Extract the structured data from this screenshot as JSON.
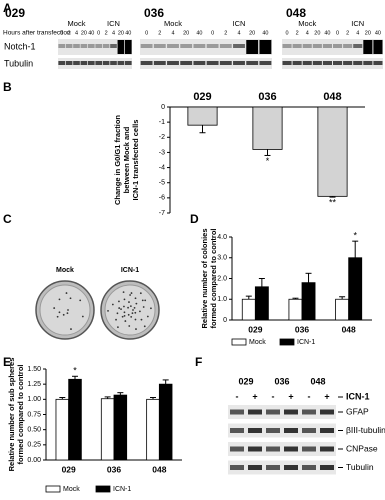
{
  "panel_labels": [
    "A",
    "B",
    "C",
    "D",
    "E",
    "F"
  ],
  "blot_a": {
    "title": "Hours after transfection",
    "lines": [
      "029",
      "036",
      "048"
    ],
    "conditions": [
      "Mock",
      "ICN"
    ],
    "hours": [
      "0",
      "2",
      "4",
      "20",
      "40"
    ],
    "rows": [
      "Notch-1",
      "Tubulin"
    ]
  },
  "panel_c": {
    "labels": [
      "Mock",
      "ICN-1"
    ]
  },
  "blot_f": {
    "lines": [
      "029",
      "036",
      "048"
    ],
    "signs": [
      "-",
      "+"
    ],
    "treatment": "ICN-1",
    "rows": [
      "GFAP",
      "βIII-tubulin",
      "CNPase",
      "Tubulin"
    ]
  },
  "chart_data": [
    {
      "type": "bar",
      "ylabel": [
        "Change in G0/G1 fraction",
        "between Mock and",
        "ICN-1 transfected cells"
      ],
      "categories": [
        "029",
        "036",
        "048"
      ],
      "values": [
        -1.2,
        -2.8,
        -5.9
      ],
      "errors": [
        0.5,
        0.4,
        0.05
      ],
      "color": "#d3d3d3",
      "ylim": [
        -7,
        0
      ],
      "yticks": [
        0,
        -1,
        -2,
        -3,
        -4,
        -5,
        -6,
        -7
      ],
      "annotations": [
        "*",
        "**"
      ]
    },
    {
      "type": "bar",
      "ylabel": [
        "Relative number of colonies",
        "formed compared to control"
      ],
      "categories": [
        "029",
        "036",
        "048"
      ],
      "series": [
        {
          "name": "Mock",
          "color": "#ffffff",
          "values": [
            1.0,
            1.0,
            1.0
          ],
          "errors": [
            0.15,
            0.05,
            0.12
          ]
        },
        {
          "name": "ICN-1",
          "color": "#000000",
          "values": [
            1.6,
            1.8,
            3.0
          ],
          "errors": [
            0.4,
            0.45,
            0.8
          ]
        }
      ],
      "ylim": [
        0,
        4
      ],
      "yticks": [
        0,
        {
          "value": 1,
          "label": "1.0"
        },
        {
          "value": 2,
          "label": "2.0"
        },
        {
          "value": 3,
          "label": "3.0"
        },
        {
          "value": 4,
          "label": "4.0"
        }
      ],
      "annotations": [
        "*"
      ]
    },
    {
      "type": "bar",
      "ylabel": [
        "Relative number of sub spheres",
        "formed compared to control"
      ],
      "categories": [
        "029",
        "036",
        "048"
      ],
      "series": [
        {
          "name": "Mock",
          "color": "#ffffff",
          "values": [
            1.0,
            1.01,
            1.0
          ],
          "errors": [
            0.03,
            0.03,
            0.03
          ]
        },
        {
          "name": "ICN-1",
          "color": "#000000",
          "values": [
            1.33,
            1.07,
            1.25
          ],
          "errors": [
            0.05,
            0.04,
            0.07
          ]
        }
      ],
      "ylim": [
        0,
        1.5
      ],
      "yticks": [
        {
          "value": 0,
          "label": "0.00"
        },
        {
          "value": 0.25,
          "label": "0.25"
        },
        {
          "value": 0.5,
          "label": "0.50"
        },
        {
          "value": 0.75,
          "label": "0.75"
        },
        {
          "value": 1,
          "label": "1.00"
        },
        {
          "value": 1.25,
          "label": "1.25"
        },
        {
          "value": 1.5,
          "label": "1.50"
        }
      ],
      "annotations": [
        "*"
      ]
    }
  ]
}
